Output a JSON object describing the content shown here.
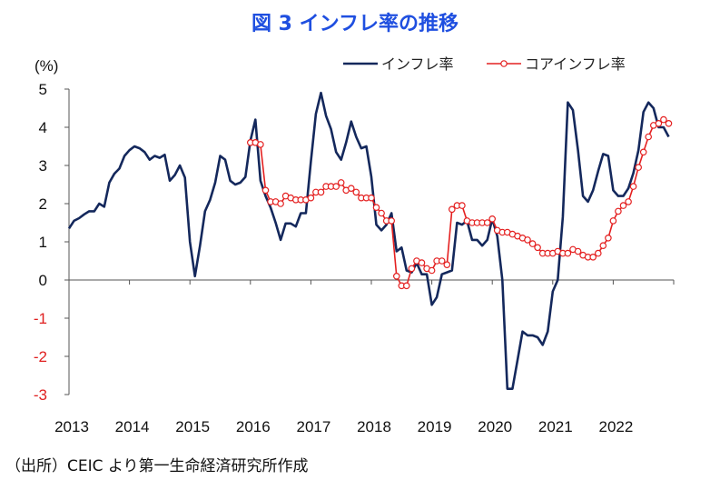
{
  "title": "図 3  インフレ率の推移",
  "source": "（出所）CEIC より第一生命経済研究所作成",
  "colors": {
    "title": "#1F4FE0",
    "inflation": "#14285C",
    "core": "#E42020",
    "negative_tick": "#E02020",
    "axis": "#555555"
  },
  "chart_data": {
    "type": "line",
    "ylabel": "(%)",
    "ylim": [
      -3,
      5
    ],
    "yticks": [
      "5",
      "4",
      "3",
      "2",
      "1",
      "0",
      "-1",
      "-2",
      "-3"
    ],
    "xticks": [
      "2013",
      "2014",
      "2015",
      "2016",
      "2017",
      "2018",
      "2019",
      "2020",
      "2021",
      "2022"
    ],
    "grid": false,
    "legend_position": "top-right",
    "series": [
      {
        "name": "インフレ率",
        "color": "#14285C",
        "x": [
          2013.0,
          2013.083,
          2013.167,
          2013.25,
          2013.333,
          2013.417,
          2013.5,
          2013.583,
          2013.667,
          2013.75,
          2013.833,
          2013.917,
          2014.0,
          2014.083,
          2014.167,
          2014.25,
          2014.333,
          2014.417,
          2014.5,
          2014.583,
          2014.667,
          2014.75,
          2014.833,
          2014.917,
          2015.0,
          2015.083,
          2015.167,
          2015.25,
          2015.333,
          2015.417,
          2015.5,
          2015.583,
          2015.667,
          2015.75,
          2015.833,
          2015.917,
          2016.0,
          2016.083,
          2016.167,
          2016.25,
          2016.333,
          2016.417,
          2016.5,
          2016.583,
          2016.667,
          2016.75,
          2016.833,
          2016.917,
          2017.0,
          2017.083,
          2017.167,
          2017.25,
          2017.333,
          2017.417,
          2017.5,
          2017.583,
          2017.667,
          2017.75,
          2017.833,
          2017.917,
          2018.0,
          2018.083,
          2018.167,
          2018.25,
          2018.333,
          2018.417,
          2018.5,
          2018.583,
          2018.667,
          2018.75,
          2018.833,
          2018.917,
          2019.0,
          2019.083,
          2019.167,
          2019.25,
          2019.333,
          2019.417,
          2019.5,
          2019.583,
          2019.667,
          2019.75,
          2019.833,
          2019.917,
          2020.0,
          2020.083,
          2020.167,
          2020.25,
          2020.333,
          2020.417,
          2020.5,
          2020.583,
          2020.667,
          2020.75,
          2020.833,
          2020.917,
          2021.0,
          2021.083,
          2021.167,
          2021.25,
          2021.333,
          2021.417,
          2021.5,
          2021.583,
          2021.667,
          2021.75,
          2021.833,
          2021.917,
          2022.0,
          2022.083,
          2022.167,
          2022.25,
          2022.333,
          2022.417,
          2022.5,
          2022.583,
          2022.667,
          2022.75,
          2022.833,
          2022.917
        ],
        "y": [
          1.35,
          1.55,
          1.62,
          1.72,
          1.8,
          1.8,
          2.0,
          1.92,
          2.55,
          2.78,
          2.92,
          3.25,
          3.4,
          3.5,
          3.45,
          3.35,
          3.15,
          3.25,
          3.2,
          3.28,
          2.6,
          2.75,
          3.0,
          2.68,
          1.0,
          0.1,
          0.9,
          1.8,
          2.1,
          2.55,
          3.25,
          3.15,
          2.6,
          2.5,
          2.55,
          2.7,
          3.65,
          4.2,
          2.6,
          2.2,
          1.9,
          1.5,
          1.05,
          1.48,
          1.48,
          1.4,
          1.75,
          1.75,
          3.1,
          4.35,
          4.9,
          4.3,
          3.95,
          3.35,
          3.15,
          3.6,
          4.15,
          3.75,
          3.45,
          3.5,
          2.7,
          1.45,
          1.3,
          1.45,
          1.75,
          0.75,
          0.85,
          0.25,
          0.2,
          0.45,
          0.15,
          0.15,
          -0.65,
          -0.45,
          0.15,
          0.2,
          0.25,
          1.5,
          1.45,
          1.55,
          1.05,
          1.05,
          0.9,
          1.05,
          1.6,
          1.15,
          0.0,
          -2.85,
          -2.85,
          -2.1,
          -1.35,
          -1.45,
          -1.45,
          -1.5,
          -1.7,
          -1.35,
          -0.3,
          0.0,
          1.65,
          4.65,
          4.45,
          3.4,
          2.2,
          2.05,
          2.35,
          2.85,
          3.3,
          3.25,
          2.35,
          2.2,
          2.2,
          2.4,
          2.8,
          3.4,
          4.4,
          4.65,
          4.5,
          4.0,
          4.0,
          3.75
        ]
      },
      {
        "name": "コアインフレ率",
        "color": "#E42020",
        "x": [
          2016.0,
          2016.083,
          2016.167,
          2016.25,
          2016.333,
          2016.417,
          2016.5,
          2016.583,
          2016.667,
          2016.75,
          2016.833,
          2016.917,
          2017.0,
          2017.083,
          2017.167,
          2017.25,
          2017.333,
          2017.417,
          2017.5,
          2017.583,
          2017.667,
          2017.75,
          2017.833,
          2017.917,
          2018.0,
          2018.083,
          2018.167,
          2018.25,
          2018.333,
          2018.417,
          2018.5,
          2018.583,
          2018.667,
          2018.75,
          2018.833,
          2018.917,
          2019.0,
          2019.083,
          2019.167,
          2019.25,
          2019.333,
          2019.417,
          2019.5,
          2019.583,
          2019.667,
          2019.75,
          2019.833,
          2019.917,
          2020.0,
          2020.083,
          2020.167,
          2020.25,
          2020.333,
          2020.417,
          2020.5,
          2020.583,
          2020.667,
          2020.75,
          2020.833,
          2020.917,
          2021.0,
          2021.083,
          2021.167,
          2021.25,
          2021.333,
          2021.417,
          2021.5,
          2021.583,
          2021.667,
          2021.75,
          2021.833,
          2021.917,
          2022.0,
          2022.083,
          2022.167,
          2022.25,
          2022.333,
          2022.417,
          2022.5,
          2022.583,
          2022.667,
          2022.75,
          2022.833,
          2022.917
        ],
        "y": [
          3.6,
          3.6,
          3.55,
          2.35,
          2.05,
          2.05,
          2.0,
          2.2,
          2.15,
          2.1,
          2.1,
          2.1,
          2.15,
          2.3,
          2.3,
          2.45,
          2.45,
          2.45,
          2.55,
          2.35,
          2.4,
          2.3,
          2.15,
          2.15,
          2.15,
          1.9,
          1.75,
          1.55,
          1.55,
          0.1,
          -0.15,
          -0.15,
          0.3,
          0.5,
          0.45,
          0.3,
          0.25,
          0.5,
          0.5,
          0.4,
          1.85,
          1.95,
          1.95,
          1.55,
          1.5,
          1.5,
          1.5,
          1.5,
          1.6,
          1.3,
          1.25,
          1.25,
          1.2,
          1.15,
          1.1,
          1.05,
          0.95,
          0.85,
          0.7,
          0.7,
          0.7,
          0.75,
          0.7,
          0.7,
          0.8,
          0.75,
          0.65,
          0.6,
          0.6,
          0.7,
          0.9,
          1.1,
          1.55,
          1.8,
          1.95,
          2.05,
          2.45,
          2.95,
          3.35,
          3.75,
          4.05,
          4.1,
          4.2,
          4.1
        ]
      }
    ]
  }
}
